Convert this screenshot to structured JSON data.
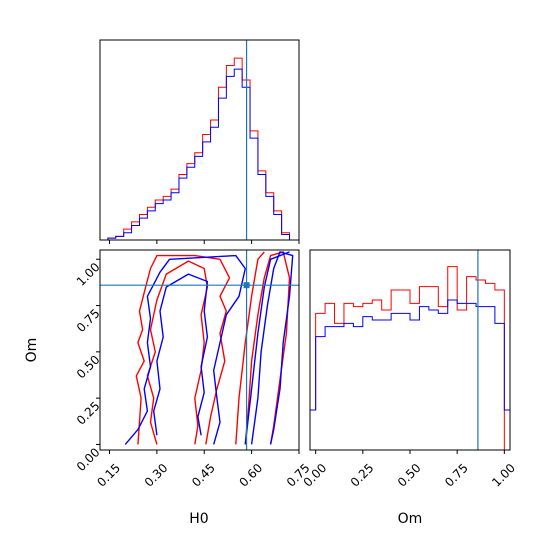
{
  "chart_data": [
    {
      "type": "histogram",
      "panel": "H0 marginal",
      "xlim": [
        0.12,
        0.75
      ],
      "truth": 0.584,
      "bin_edges": [
        0.12,
        0.145,
        0.17,
        0.195,
        0.22,
        0.245,
        0.27,
        0.295,
        0.32,
        0.345,
        0.37,
        0.395,
        0.42,
        0.445,
        0.47,
        0.495,
        0.52,
        0.545,
        0.57,
        0.595,
        0.62,
        0.645,
        0.67,
        0.695,
        0.72,
        0.745
      ],
      "series": [
        {
          "color": "#ff0000",
          "counts": [
            0,
            0.5,
            1,
            3,
            5,
            7,
            9,
            11,
            12,
            14,
            18,
            21,
            24,
            29,
            33,
            42,
            48,
            50,
            44,
            30,
            19,
            13,
            8,
            2,
            0
          ]
        },
        {
          "color": "#0000ff",
          "counts": [
            0,
            0.5,
            1,
            2,
            4,
            6,
            8,
            10,
            11,
            13,
            17,
            20,
            23,
            27,
            31,
            39,
            45,
            47,
            42,
            28,
            18,
            12,
            7,
            1.5,
            0
          ]
        }
      ],
      "ylim": [
        0,
        55
      ]
    },
    {
      "type": "contour",
      "panel": "H0 vs Om 2D",
      "xlim": [
        0.12,
        0.75
      ],
      "ylim": [
        -0.03,
        1.05
      ],
      "truth": {
        "x": 0.584,
        "y": 0.86
      },
      "xlabel": "H0",
      "ylabel": "Om",
      "xticks": [
        "0.15",
        "0.30",
        "0.45",
        "0.60",
        "0.75"
      ],
      "xtick_values": [
        0.15,
        0.3,
        0.45,
        0.6,
        0.75
      ],
      "yticks": [
        "0.00",
        "0.25",
        "0.50",
        "0.75",
        "1.00"
      ],
      "ytick_values": [
        0.0,
        0.25,
        0.5,
        0.75,
        1.0
      ],
      "series": [
        {
          "color": "#ff0000",
          "contours": [
            [
              [
                0.24,
                0.0
              ],
              [
                0.245,
                0.12
              ],
              [
                0.25,
                0.25
              ],
              [
                0.235,
                0.37
              ],
              [
                0.26,
                0.45
              ],
              [
                0.24,
                0.55
              ],
              [
                0.255,
                0.62
              ],
              [
                0.245,
                0.72
              ],
              [
                0.26,
                0.82
              ],
              [
                0.28,
                0.95
              ],
              [
                0.3,
                1.02
              ],
              [
                0.42,
                1.02
              ],
              [
                0.5,
                1.0
              ],
              [
                0.53,
                0.9
              ],
              [
                0.5,
                0.8
              ],
              [
                0.52,
                0.72
              ],
              [
                0.5,
                0.6
              ],
              [
                0.515,
                0.45
              ],
              [
                0.49,
                0.3
              ],
              [
                0.47,
                0.15
              ],
              [
                0.455,
                0.0
              ]
            ],
            [
              [
                0.3,
                0.0
              ],
              [
                0.28,
                0.12
              ],
              [
                0.29,
                0.25
              ],
              [
                0.27,
                0.37
              ],
              [
                0.295,
                0.5
              ],
              [
                0.28,
                0.62
              ],
              [
                0.3,
                0.78
              ],
              [
                0.33,
                0.92
              ],
              [
                0.4,
                0.99
              ],
              [
                0.45,
                0.95
              ],
              [
                0.46,
                0.85
              ],
              [
                0.44,
                0.7
              ],
              [
                0.45,
                0.55
              ],
              [
                0.44,
                0.4
              ],
              [
                0.42,
                0.25
              ],
              [
                0.43,
                0.1
              ],
              [
                0.42,
                0.0
              ]
            ],
            [
              [
                0.58,
                0.0
              ],
              [
                0.59,
                0.2
              ],
              [
                0.6,
                0.45
              ],
              [
                0.62,
                0.7
              ],
              [
                0.64,
                0.9
              ],
              [
                0.66,
                1.02
              ],
              [
                0.7,
                1.04
              ],
              [
                0.72,
                0.9
              ],
              [
                0.71,
                0.6
              ],
              [
                0.69,
                0.35
              ],
              [
                0.67,
                0.1
              ],
              [
                0.66,
                0.0
              ]
            ],
            [
              [
                0.55,
                0.0
              ],
              [
                0.56,
                0.25
              ],
              [
                0.58,
                0.55
              ],
              [
                0.6,
                0.8
              ],
              [
                0.62,
                1.0
              ],
              [
                0.64,
                1.04
              ]
            ]
          ]
        },
        {
          "color": "#0000ff",
          "contours": [
            [
              [
                0.2,
                0.0
              ],
              [
                0.24,
                0.08
              ],
              [
                0.27,
                0.18
              ],
              [
                0.26,
                0.3
              ],
              [
                0.28,
                0.42
              ],
              [
                0.27,
                0.55
              ],
              [
                0.28,
                0.68
              ],
              [
                0.27,
                0.8
              ],
              [
                0.31,
                0.93
              ],
              [
                0.34,
                1.0
              ],
              [
                0.55,
                1.02
              ],
              [
                0.58,
                0.95
              ],
              [
                0.56,
                0.8
              ],
              [
                0.52,
                0.7
              ],
              [
                0.5,
                0.55
              ],
              [
                0.48,
                0.4
              ],
              [
                0.49,
                0.25
              ],
              [
                0.5,
                0.12
              ],
              [
                0.48,
                0.0
              ]
            ],
            [
              [
                0.3,
                0.05
              ],
              [
                0.29,
                0.18
              ],
              [
                0.31,
                0.3
              ],
              [
                0.3,
                0.45
              ],
              [
                0.32,
                0.58
              ],
              [
                0.31,
                0.72
              ],
              [
                0.33,
                0.85
              ],
              [
                0.4,
                0.92
              ],
              [
                0.46,
                0.88
              ],
              [
                0.45,
                0.72
              ],
              [
                0.46,
                0.58
              ],
              [
                0.44,
                0.42
              ],
              [
                0.45,
                0.28
              ],
              [
                0.43,
                0.15
              ],
              [
                0.44,
                0.05
              ]
            ],
            [
              [
                0.6,
                0.0
              ],
              [
                0.62,
                0.25
              ],
              [
                0.63,
                0.5
              ],
              [
                0.65,
                0.75
              ],
              [
                0.67,
                0.95
              ],
              [
                0.69,
                1.04
              ],
              [
                0.73,
                1.02
              ],
              [
                0.72,
                0.8
              ],
              [
                0.7,
                0.55
              ],
              [
                0.69,
                0.3
              ],
              [
                0.67,
                0.08
              ],
              [
                0.66,
                0.0
              ]
            ],
            [
              [
                0.58,
                0.0
              ],
              [
                0.6,
                0.3
              ],
              [
                0.62,
                0.6
              ],
              [
                0.64,
                0.85
              ],
              [
                0.66,
                1.0
              ],
              [
                0.72,
                1.04
              ]
            ]
          ]
        }
      ]
    },
    {
      "type": "histogram",
      "panel": "Om marginal",
      "xlim": [
        -0.03,
        1.03
      ],
      "truth": 0.86,
      "xlabel": "Om",
      "xticks": [
        "0.00",
        "0.25",
        "0.50",
        "0.75",
        "1.00"
      ],
      "xtick_values": [
        0.0,
        0.25,
        0.5,
        0.75,
        1.0
      ],
      "bin_edges": [
        -0.03,
        0.0,
        0.05,
        0.1,
        0.15,
        0.2,
        0.25,
        0.3,
        0.35,
        0.4,
        0.45,
        0.5,
        0.55,
        0.6,
        0.65,
        0.7,
        0.75,
        0.8,
        0.85,
        0.9,
        0.95,
        1.0,
        1.03
      ],
      "series": [
        {
          "color": "#ff0000",
          "counts": [
            12,
            41,
            44,
            38,
            44,
            43,
            44,
            45,
            42,
            48,
            48,
            44,
            49,
            49,
            43,
            55,
            42,
            52,
            51,
            50,
            48,
            0
          ]
        },
        {
          "color": "#0000ff",
          "counts": [
            12,
            34,
            37,
            37,
            38,
            37,
            40,
            39,
            39,
            41,
            41,
            39,
            43,
            42,
            41,
            45,
            44,
            44,
            43,
            43,
            38,
            12
          ]
        }
      ],
      "ylim": [
        0,
        60
      ]
    }
  ]
}
